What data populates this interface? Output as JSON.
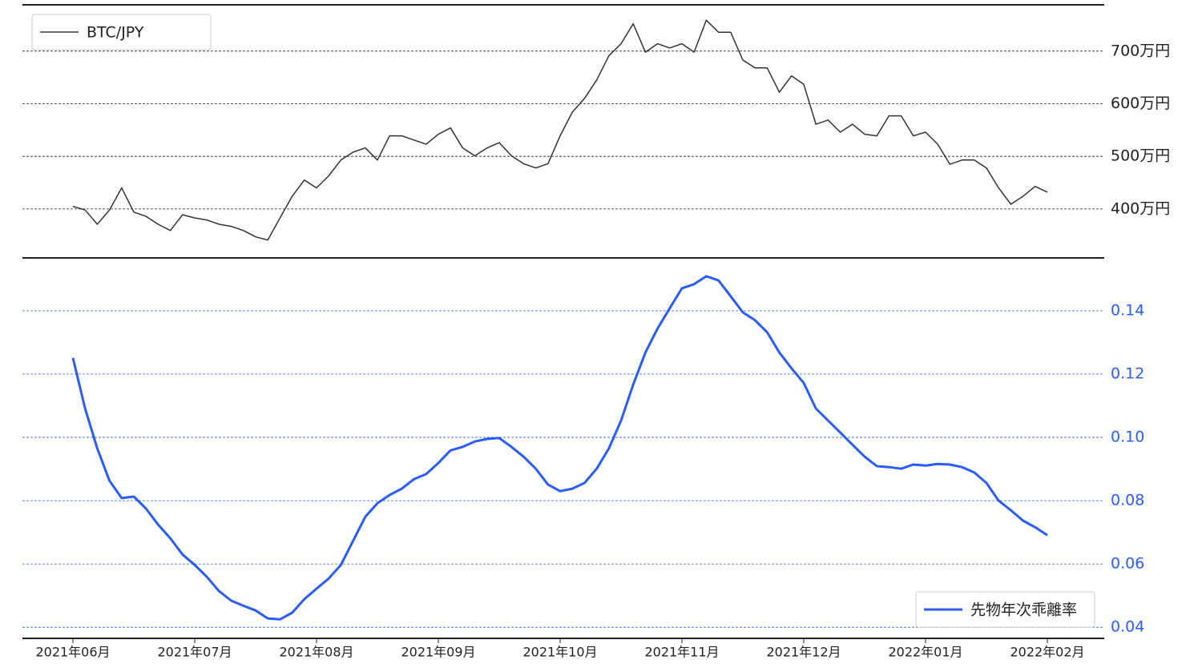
{
  "chart_data": [
    {
      "type": "line",
      "grid": true,
      "legend": "upper left",
      "tick_color": "#222",
      "ylim": [
        3070000,
        7880000
      ],
      "yticks": [
        {
          "value": 4000000,
          "label": "400万円"
        },
        {
          "value": 5000000,
          "label": "500万円"
        },
        {
          "value": 6000000,
          "label": "600万円"
        },
        {
          "value": 7000000,
          "label": "700万円"
        }
      ],
      "series": [
        {
          "name": "BTC/JPY",
          "color": "#333333",
          "width": 1.5,
          "values": [
            4050000,
            3980000,
            3710000,
            3980000,
            4400000,
            3940000,
            3860000,
            3710000,
            3590000,
            3890000,
            3830000,
            3790000,
            3710000,
            3670000,
            3590000,
            3470000,
            3410000,
            3830000,
            4240000,
            4550000,
            4400000,
            4630000,
            4930000,
            5080000,
            5160000,
            4930000,
            5390000,
            5390000,
            5310000,
            5230000,
            5420000,
            5540000,
            5160000,
            5010000,
            5160000,
            5260000,
            5010000,
            4860000,
            4780000,
            4860000,
            5390000,
            5840000,
            6100000,
            6450000,
            6910000,
            7140000,
            7520000,
            6980000,
            7140000,
            7060000,
            7140000,
            6980000,
            7590000,
            7360000,
            7360000,
            6830000,
            6680000,
            6680000,
            6220000,
            6530000,
            6370000,
            5610000,
            5690000,
            5460000,
            5610000,
            5420000,
            5390000,
            5770000,
            5770000,
            5390000,
            5460000,
            5230000,
            4850000,
            4930000,
            4930000,
            4780000,
            4400000,
            4090000,
            4240000,
            4430000,
            4320000
          ]
        }
      ]
    },
    {
      "type": "line",
      "grid": true,
      "legend": "lower right",
      "tick_color": "#2b5cff",
      "ylim": [
        0.0365,
        0.1567
      ],
      "yticks": [
        0.04,
        0.06,
        0.08,
        {
          "value": 0.1,
          "label": "0.10"
        },
        0.12,
        0.14
      ],
      "categories": [
        "2021年06月",
        null,
        null,
        null,
        null,
        null,
        null,
        null,
        null,
        null,
        "2021年07月",
        null,
        null,
        null,
        null,
        null,
        null,
        null,
        null,
        null,
        "2021年08月",
        null,
        null,
        null,
        null,
        null,
        null,
        null,
        null,
        null,
        "2021年09月",
        null,
        null,
        null,
        null,
        null,
        null,
        null,
        null,
        null,
        "2021年10月",
        null,
        null,
        null,
        null,
        null,
        null,
        null,
        null,
        null,
        "2021年11月",
        null,
        null,
        null,
        null,
        null,
        null,
        null,
        null,
        null,
        "2021年12月",
        null,
        null,
        null,
        null,
        null,
        null,
        null,
        null,
        null,
        "2022年01月",
        null,
        null,
        null,
        null,
        null,
        null,
        null,
        null,
        null,
        "2022年02月"
      ],
      "series": [
        {
          "name": "先物年次乖離率",
          "color": "#2b5cff",
          "width": 3,
          "values": [
            0.1251,
            0.1091,
            0.0965,
            0.0863,
            0.0808,
            0.0813,
            0.0775,
            0.0724,
            0.0681,
            0.063,
            0.0597,
            0.0559,
            0.0514,
            0.0484,
            0.0468,
            0.0453,
            0.0428,
            0.0425,
            0.0446,
            0.0489,
            0.0522,
            0.0554,
            0.0597,
            0.0673,
            0.0749,
            0.0792,
            0.0818,
            0.0838,
            0.0868,
            0.0884,
            0.0919,
            0.0959,
            0.097,
            0.0987,
            0.0995,
            0.0998,
            0.097,
            0.0939,
            0.0901,
            0.0851,
            0.083,
            0.0838,
            0.0856,
            0.0901,
            0.0965,
            0.1053,
            0.1167,
            0.1268,
            0.1344,
            0.1408,
            0.1471,
            0.1484,
            0.1509,
            0.1496,
            0.1446,
            0.1395,
            0.137,
            0.1332,
            0.1268,
            0.1218,
            0.1172,
            0.1091,
            0.1053,
            0.1015,
            0.0977,
            0.0939,
            0.0909,
            0.0906,
            0.0901,
            0.0914,
            0.0911,
            0.0916,
            0.0914,
            0.0906,
            0.0889,
            0.0856,
            0.08,
            0.077,
            0.0737,
            0.0716,
            0.0691
          ]
        }
      ]
    }
  ]
}
